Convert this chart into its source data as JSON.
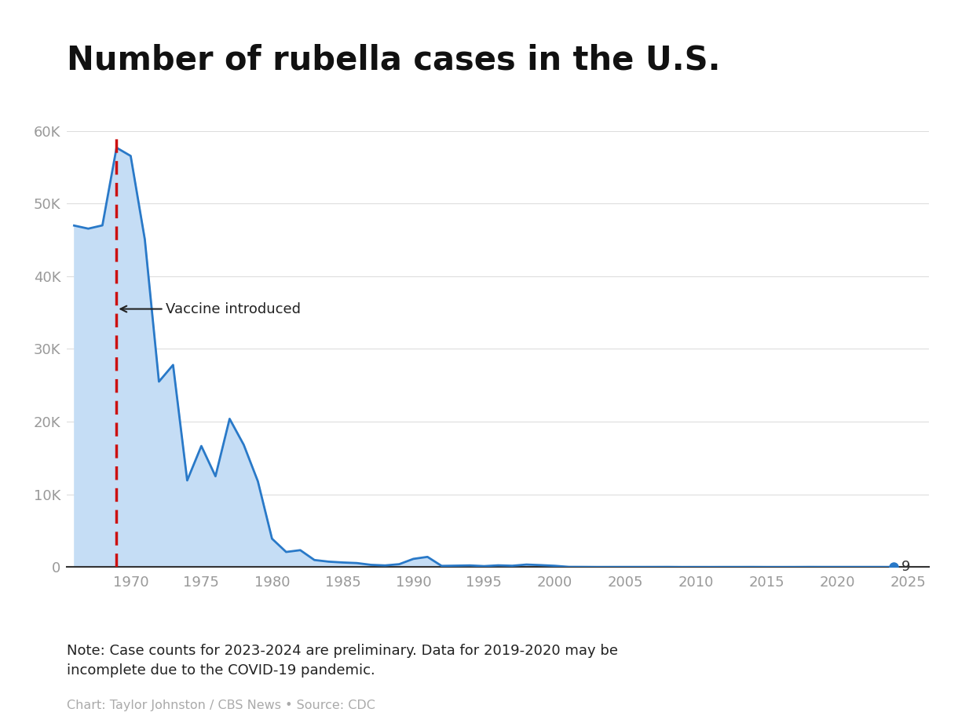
{
  "title": "Number of rubella cases in the U.S.",
  "title_fontsize": 30,
  "title_fontweight": "bold",
  "note": "Note: Case counts for 2023-2024 are preliminary. Data for 2019-2020 may be\nincomplete due to the COVID-19 pandemic.",
  "credit": "Chart: Taylor Johnston / CBS News • Source: CDC",
  "vaccine_year": 1969,
  "vaccine_label": "Vaccine introduced",
  "last_value": 9,
  "last_year": 2024,
  "line_color": "#2979c8",
  "fill_color": "#c5ddf5",
  "dashed_line_color": "#cc1111",
  "background_color": "#ffffff",
  "grid_color": "#dddddd",
  "axis_bottom_color": "#333333",
  "tick_label_color": "#999999",
  "note_color": "#222222",
  "credit_color": "#aaaaaa",
  "years": [
    1966,
    1967,
    1968,
    1969,
    1970,
    1971,
    1972,
    1973,
    1974,
    1975,
    1976,
    1977,
    1978,
    1979,
    1980,
    1981,
    1982,
    1983,
    1984,
    1985,
    1986,
    1987,
    1988,
    1989,
    1990,
    1991,
    1992,
    1993,
    1994,
    1995,
    1996,
    1997,
    1998,
    1999,
    2000,
    2001,
    2002,
    2003,
    2004,
    2005,
    2006,
    2007,
    2008,
    2009,
    2010,
    2011,
    2012,
    2013,
    2014,
    2015,
    2016,
    2017,
    2018,
    2019,
    2020,
    2021,
    2022,
    2023,
    2024
  ],
  "cases": [
    46975,
    46550,
    47000,
    57686,
    56552,
    45086,
    25507,
    27804,
    11917,
    16652,
    12491,
    20395,
    16817,
    11795,
    3904,
    2077,
    2325,
    970,
    745,
    630,
    551,
    306,
    225,
    396,
    1125,
    1401,
    160,
    192,
    227,
    128,
    238,
    181,
    345,
    267,
    176,
    23,
    18,
    7,
    10,
    11,
    11,
    12,
    16,
    3,
    6,
    4,
    9,
    9,
    12,
    5,
    5,
    7,
    15,
    12,
    12,
    12,
    12,
    12,
    9
  ],
  "ylim_max": 60000,
  "xlim_min": 1965.5,
  "xlim_max": 2026.5
}
